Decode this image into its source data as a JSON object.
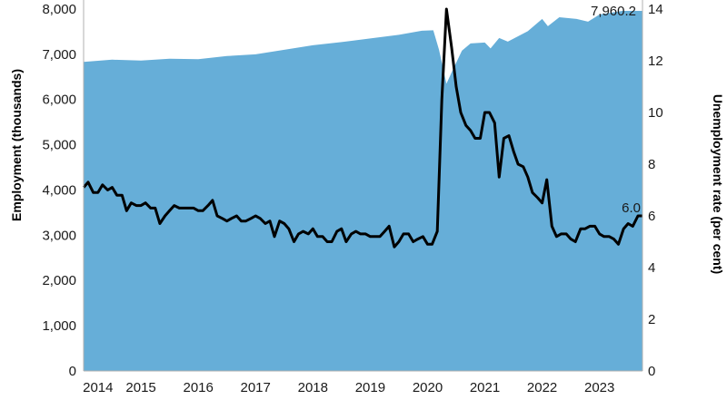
{
  "chart_data": {
    "type": "area",
    "title": "",
    "left_axis": {
      "label": "Employment (thousands)",
      "ylim": [
        0,
        8200
      ],
      "ticks": [
        0,
        1000,
        2000,
        3000,
        4000,
        5000,
        6000,
        7000,
        8000
      ],
      "tick_labels": [
        "0",
        "1,000",
        "2,000",
        "3,000",
        "4,000",
        "5,000",
        "6,000",
        "7,000",
        "8,000"
      ]
    },
    "right_axis": {
      "label": "Unemployment rate (per cent)",
      "ylim": [
        0,
        14.35
      ],
      "ticks": [
        0,
        2,
        4,
        6,
        8,
        10,
        12,
        14
      ],
      "tick_labels": [
        "0",
        "2",
        "4",
        "6",
        "8",
        "10",
        "12",
        "14"
      ]
    },
    "x_axis": {
      "label": "",
      "xlim": [
        2014.0,
        2023.75
      ],
      "tick_labels": [
        "2014",
        "2015",
        "2016",
        "2017",
        "2018",
        "2019",
        "2020",
        "2021",
        "2022",
        "2023"
      ],
      "tick_positions": [
        2014.25,
        2015.0,
        2016.0,
        2017.0,
        2018.0,
        2019.0,
        2020.0,
        2021.0,
        2022.0,
        2023.0
      ]
    },
    "grid": false,
    "legend": "none",
    "colors": {
      "area": "#66aed8",
      "line": "#000000"
    },
    "series": [
      {
        "axis": "left",
        "style": "area",
        "points": [
          [
            2014.0,
            6830
          ],
          [
            2014.5,
            6880
          ],
          [
            2015.0,
            6860
          ],
          [
            2015.5,
            6900
          ],
          [
            2016.0,
            6890
          ],
          [
            2016.5,
            6960
          ],
          [
            2017.0,
            7000
          ],
          [
            2017.5,
            7100
          ],
          [
            2018.0,
            7200
          ],
          [
            2018.5,
            7270
          ],
          [
            2019.0,
            7350
          ],
          [
            2019.5,
            7430
          ],
          [
            2019.9,
            7520
          ],
          [
            2020.1,
            7530
          ],
          [
            2020.2,
            7100
          ],
          [
            2020.33,
            6350
          ],
          [
            2020.42,
            6600
          ],
          [
            2020.6,
            7080
          ],
          [
            2020.75,
            7240
          ],
          [
            2021.0,
            7260
          ],
          [
            2021.1,
            7130
          ],
          [
            2021.25,
            7360
          ],
          [
            2021.4,
            7280
          ],
          [
            2021.75,
            7510
          ],
          [
            2022.0,
            7780
          ],
          [
            2022.1,
            7620
          ],
          [
            2022.3,
            7820
          ],
          [
            2022.6,
            7780
          ],
          [
            2022.8,
            7720
          ],
          [
            2023.0,
            7880
          ],
          [
            2023.25,
            7930
          ],
          [
            2023.4,
            7960.2
          ],
          [
            2023.75,
            7960.2
          ]
        ],
        "last_value_label": "7,960.2"
      },
      {
        "axis": "right",
        "style": "line",
        "points": [
          [
            2014.0,
            7.1
          ],
          [
            2014.08,
            7.3
          ],
          [
            2014.17,
            6.9
          ],
          [
            2014.25,
            6.9
          ],
          [
            2014.33,
            7.2
          ],
          [
            2014.42,
            7.0
          ],
          [
            2014.5,
            7.1
          ],
          [
            2014.58,
            6.8
          ],
          [
            2014.67,
            6.8
          ],
          [
            2014.75,
            6.2
          ],
          [
            2014.83,
            6.5
          ],
          [
            2014.92,
            6.4
          ],
          [
            2015.0,
            6.4
          ],
          [
            2015.08,
            6.5
          ],
          [
            2015.17,
            6.3
          ],
          [
            2015.25,
            6.3
          ],
          [
            2015.33,
            5.7
          ],
          [
            2015.42,
            6.0
          ],
          [
            2015.5,
            6.2
          ],
          [
            2015.58,
            6.4
          ],
          [
            2015.67,
            6.3
          ],
          [
            2015.75,
            6.3
          ],
          [
            2015.83,
            6.3
          ],
          [
            2015.92,
            6.3
          ],
          [
            2016.0,
            6.2
          ],
          [
            2016.08,
            6.2
          ],
          [
            2016.17,
            6.4
          ],
          [
            2016.25,
            6.6
          ],
          [
            2016.33,
            6.0
          ],
          [
            2016.42,
            5.9
          ],
          [
            2016.5,
            5.8
          ],
          [
            2016.58,
            5.9
          ],
          [
            2016.67,
            6.0
          ],
          [
            2016.75,
            5.8
          ],
          [
            2016.83,
            5.8
          ],
          [
            2016.92,
            5.9
          ],
          [
            2017.0,
            6.0
          ],
          [
            2017.08,
            5.9
          ],
          [
            2017.17,
            5.7
          ],
          [
            2017.25,
            5.8
          ],
          [
            2017.33,
            5.2
          ],
          [
            2017.42,
            5.8
          ],
          [
            2017.5,
            5.7
          ],
          [
            2017.58,
            5.5
          ],
          [
            2017.67,
            5.0
          ],
          [
            2017.75,
            5.3
          ],
          [
            2017.83,
            5.4
          ],
          [
            2017.92,
            5.3
          ],
          [
            2018.0,
            5.5
          ],
          [
            2018.08,
            5.2
          ],
          [
            2018.17,
            5.2
          ],
          [
            2018.25,
            5.0
          ],
          [
            2018.33,
            5.0
          ],
          [
            2018.42,
            5.4
          ],
          [
            2018.5,
            5.5
          ],
          [
            2018.58,
            5.0
          ],
          [
            2018.67,
            5.3
          ],
          [
            2018.75,
            5.4
          ],
          [
            2018.83,
            5.3
          ],
          [
            2018.92,
            5.3
          ],
          [
            2019.0,
            5.2
          ],
          [
            2019.08,
            5.2
          ],
          [
            2019.17,
            5.2
          ],
          [
            2019.25,
            5.4
          ],
          [
            2019.33,
            5.6
          ],
          [
            2019.42,
            4.8
          ],
          [
            2019.5,
            5.0
          ],
          [
            2019.58,
            5.3
          ],
          [
            2019.67,
            5.3
          ],
          [
            2019.75,
            5.0
          ],
          [
            2019.83,
            5.1
          ],
          [
            2019.92,
            5.2
          ],
          [
            2020.0,
            4.9
          ],
          [
            2020.08,
            4.9
          ],
          [
            2020.17,
            5.4
          ],
          [
            2020.25,
            10.5
          ],
          [
            2020.33,
            14.0
          ],
          [
            2020.42,
            12.5
          ],
          [
            2020.5,
            11.0
          ],
          [
            2020.58,
            10.0
          ],
          [
            2020.67,
            9.5
          ],
          [
            2020.75,
            9.3
          ],
          [
            2020.83,
            9.0
          ],
          [
            2020.92,
            9.0
          ],
          [
            2021.0,
            10.0
          ],
          [
            2021.08,
            10.0
          ],
          [
            2021.17,
            9.6
          ],
          [
            2021.25,
            7.5
          ],
          [
            2021.33,
            9.0
          ],
          [
            2021.42,
            9.1
          ],
          [
            2021.5,
            8.5
          ],
          [
            2021.58,
            8.0
          ],
          [
            2021.67,
            7.9
          ],
          [
            2021.75,
            7.5
          ],
          [
            2021.83,
            6.9
          ],
          [
            2021.92,
            6.7
          ],
          [
            2022.0,
            6.5
          ],
          [
            2022.08,
            7.4
          ],
          [
            2022.17,
            5.6
          ],
          [
            2022.25,
            5.2
          ],
          [
            2022.33,
            5.3
          ],
          [
            2022.42,
            5.3
          ],
          [
            2022.5,
            5.1
          ],
          [
            2022.58,
            5.0
          ],
          [
            2022.67,
            5.5
          ],
          [
            2022.75,
            5.5
          ],
          [
            2022.83,
            5.6
          ],
          [
            2022.92,
            5.6
          ],
          [
            2023.0,
            5.3
          ],
          [
            2023.08,
            5.2
          ],
          [
            2023.17,
            5.2
          ],
          [
            2023.25,
            5.1
          ],
          [
            2023.33,
            4.9
          ],
          [
            2023.42,
            5.5
          ],
          [
            2023.5,
            5.7
          ],
          [
            2023.58,
            5.6
          ],
          [
            2023.67,
            6.0
          ],
          [
            2023.75,
            6.0
          ]
        ],
        "last_value_label": "6.0"
      }
    ]
  }
}
